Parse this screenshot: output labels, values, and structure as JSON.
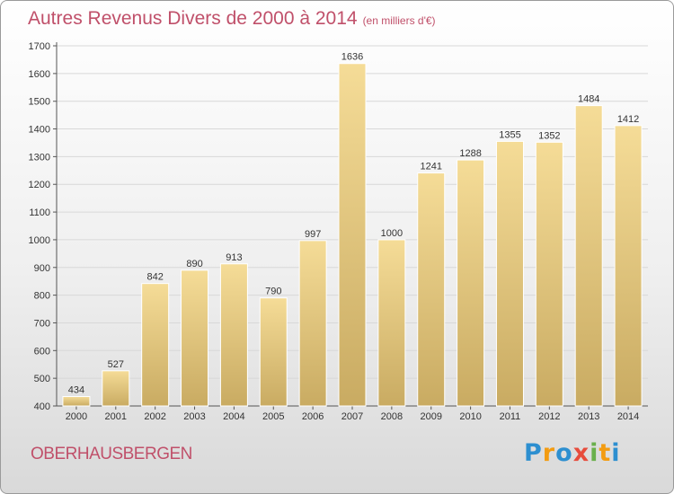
{
  "header": {
    "title": "Autres Revenus Divers de 2000 à 2014",
    "unit": "(en milliers d'€)"
  },
  "footer": {
    "city": "OBERHAUSBERGEN",
    "logo": [
      "P",
      "r",
      "o",
      "x",
      "i",
      "t",
      "i"
    ],
    "logo_colors": [
      "#2d8fd0",
      "#f39c12",
      "#2d8fd0",
      "#e74c3c",
      "#6ab04c",
      "#f39c12",
      "#2d8fd0"
    ]
  },
  "colors": {
    "title": "#c0506a",
    "bar_light": "#f5dc97",
    "bar_dark": "#c9ab62",
    "grid": "#d8d8d8"
  },
  "chart_data": {
    "type": "bar",
    "title": "Autres Revenus Divers de 2000 à 2014",
    "subtitle": "(en milliers d'€)",
    "categories": [
      "2000",
      "2001",
      "2002",
      "2003",
      "2004",
      "2005",
      "2006",
      "2007",
      "2008",
      "2009",
      "2010",
      "2011",
      "2012",
      "2013",
      "2014"
    ],
    "values": [
      434,
      527,
      842,
      890,
      913,
      790,
      997,
      1636,
      1000,
      1241,
      1288,
      1355,
      1352,
      1484,
      1412
    ],
    "ylim": [
      400,
      1700
    ],
    "yticks": [
      400,
      500,
      600,
      700,
      800,
      900,
      1000,
      1100,
      1200,
      1300,
      1400,
      1500,
      1600,
      1700
    ],
    "grid": true,
    "legend": "none"
  }
}
